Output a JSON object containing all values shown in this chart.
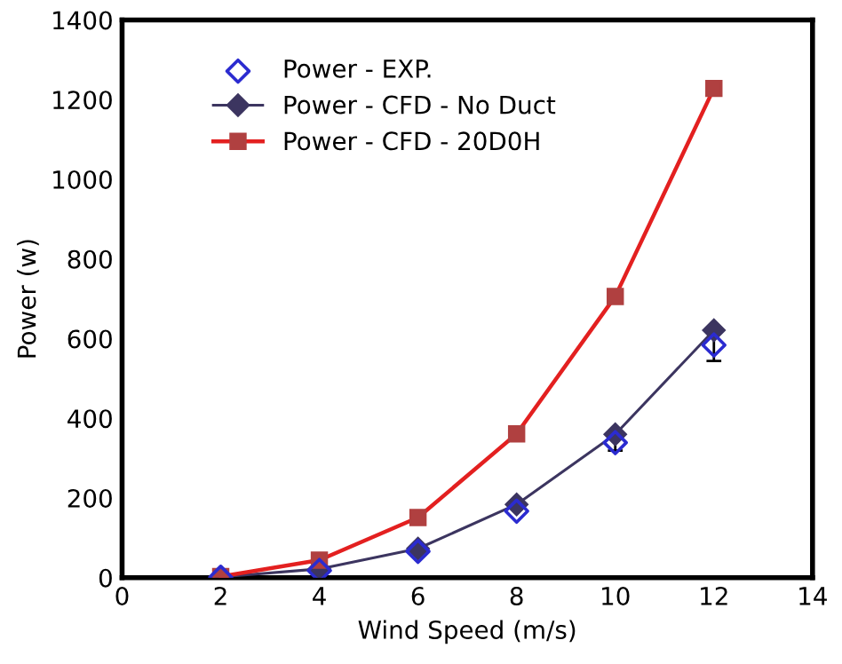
{
  "chart_data": {
    "type": "line",
    "xlabel": "Wind Speed (m/s)",
    "ylabel": "Power (w)",
    "x": [
      2,
      4,
      6,
      8,
      10,
      12
    ],
    "series": [
      {
        "name": "Power - EXP.",
        "type": "scatter",
        "color": "#2b2bd0",
        "marker": "diamond",
        "values": [
          1,
          18,
          66,
          167,
          339,
          584
        ],
        "errors": [
          null,
          null,
          null,
          null,
          20,
          40
        ]
      },
      {
        "name": "Power - CFD - No Duct",
        "color": "#3c3560",
        "marker": "diamond",
        "values": [
          2,
          22,
          73,
          184,
          360,
          621
        ]
      },
      {
        "name": "Power - CFD - 20D0H",
        "color": "#e32020",
        "marker": "square",
        "values": [
          3,
          44,
          151,
          361,
          706,
          1228
        ]
      }
    ],
    "xlim": [
      0,
      14
    ],
    "xticks": [
      0,
      2,
      4,
      6,
      8,
      10,
      12,
      14
    ],
    "ylim": [
      0,
      1400
    ],
    "yticks": [
      0,
      200,
      400,
      600,
      800,
      1000,
      1200,
      1400
    ],
    "grid": false,
    "legend": "top left"
  }
}
